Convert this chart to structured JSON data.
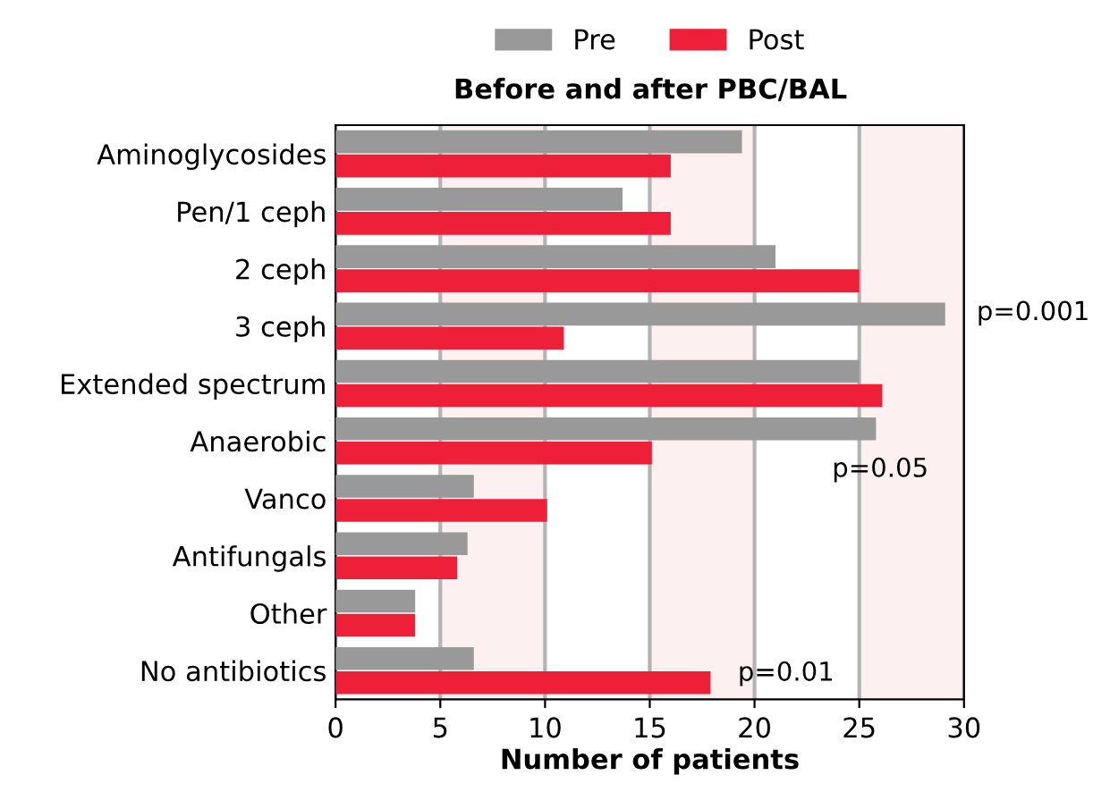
{
  "chart_data": {
    "type": "bar",
    "orientation": "horizontal",
    "title": "Before and after PBC/BAL",
    "xlabel": "Number of patients",
    "categories": [
      "Aminoglycosides",
      "Pen/1 ceph",
      "2 ceph",
      "3 ceph",
      "Extended spectrum",
      "Anaerobic",
      "Vanco",
      "Antifungals",
      "Other",
      "No antibiotics"
    ],
    "series": [
      {
        "name": "Pre",
        "color": "#999999",
        "values": [
          19.4,
          13.7,
          21,
          29.1,
          25,
          25.8,
          6.6,
          6.3,
          3.8,
          6.6
        ]
      },
      {
        "name": "Post",
        "color": "#ee2039",
        "values": [
          16,
          16,
          25,
          10.9,
          26.1,
          15.1,
          10.1,
          5.8,
          3.8,
          17.9
        ]
      }
    ],
    "xlim": [
      0,
      30
    ],
    "xticks": [
      0,
      5,
      10,
      15,
      20,
      25,
      30
    ],
    "grid": "x",
    "legend": "top",
    "bands": [
      {
        "axis": "x",
        "from": 5,
        "to": 10,
        "color": "#fdf0f1"
      },
      {
        "axis": "x",
        "from": 15,
        "to": 20,
        "color": "#fdf0f1"
      },
      {
        "axis": "x",
        "from": 25,
        "to": 30,
        "color": "#fdf0f1"
      }
    ],
    "annotations": [
      "p=0.001",
      "p=0.05",
      "p=0.01"
    ]
  }
}
